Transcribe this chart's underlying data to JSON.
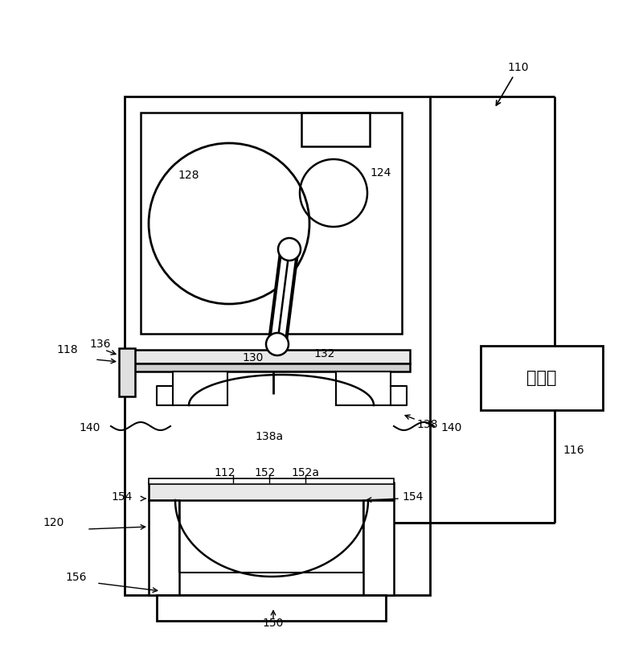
{
  "bg_color": "#ffffff",
  "line_color": "#000000",
  "fig_width": 8.0,
  "fig_height": 8.22,
  "control_text": "控制部"
}
